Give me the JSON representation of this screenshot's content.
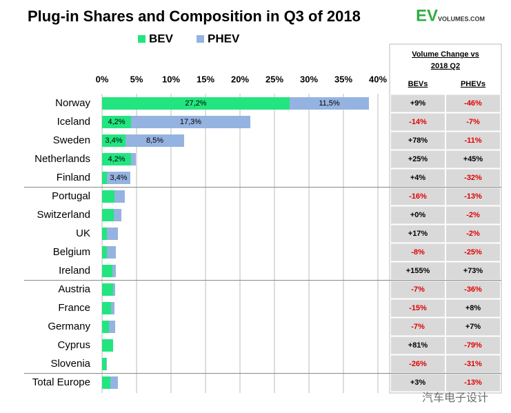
{
  "chart_data": {
    "type": "bar",
    "orientation": "horizontal",
    "stacked": true,
    "title": "Plug-in Shares and Composition in Q3 of 2018",
    "categories": [
      "Norway",
      "Iceland",
      "Sweden",
      "Netherlands",
      "Finland",
      "Portugal",
      "Switzerland",
      "UK",
      "Belgium",
      "Ireland",
      "Austria",
      "France",
      "Germany",
      "Cyprus",
      "Slovenia",
      "Total Europe"
    ],
    "series": [
      {
        "name": "BEV",
        "color": "#22e57f",
        "values": [
          27.2,
          4.2,
          3.4,
          4.2,
          0.7,
          1.8,
          1.7,
          0.7,
          0.7,
          1.5,
          1.6,
          1.3,
          1.0,
          1.6,
          0.6,
          1.2
        ],
        "value_labels": [
          "27,2%",
          "4,2%",
          "3,4%",
          "4,2%",
          null,
          null,
          null,
          null,
          null,
          null,
          null,
          null,
          null,
          null,
          null,
          null
        ]
      },
      {
        "name": "PHEV",
        "color": "#95b3e0",
        "values": [
          11.5,
          17.3,
          8.5,
          0.7,
          3.4,
          1.5,
          1.1,
          1.6,
          1.3,
          0.5,
          0.3,
          0.5,
          0.9,
          0,
          0.1,
          1.1
        ],
        "value_labels": [
          "11,5%",
          "17,3%",
          "8,5%",
          null,
          "3,4%",
          null,
          null,
          null,
          null,
          null,
          null,
          null,
          null,
          null,
          null,
          null
        ]
      }
    ],
    "xlim": [
      0,
      40
    ],
    "xticks": [
      {
        "value": 0,
        "label": "0%"
      },
      {
        "value": 5,
        "label": "5%"
      },
      {
        "value": 10,
        "label": "10%"
      },
      {
        "value": 15,
        "label": "15%"
      },
      {
        "value": 20,
        "label": "20%"
      },
      {
        "value": 25,
        "label": "25%"
      },
      {
        "value": 30,
        "label": "30%"
      },
      {
        "value": 35,
        "label": "35%"
      },
      {
        "value": 40,
        "label": "40%"
      }
    ],
    "grid": true
  },
  "logo": {
    "main": "EV",
    "sub": "VOLUMES.COM"
  },
  "table": {
    "header": [
      "Volume Change vs",
      "2018 Q2"
    ],
    "columns": [
      "BEVs",
      "PHEVs"
    ],
    "rows": [
      [
        "+9%",
        "-46%"
      ],
      [
        "-14%",
        "-7%"
      ],
      [
        "+78%",
        "-11%"
      ],
      [
        "+25%",
        "+45%"
      ],
      [
        "+4%",
        "-32%"
      ],
      [
        "-16%",
        "-13%"
      ],
      [
        "+0%",
        "-2%"
      ],
      [
        "+17%",
        "-2%"
      ],
      [
        "-8%",
        "-25%"
      ],
      [
        "+155%",
        "+73%"
      ],
      [
        "-7%",
        "-36%"
      ],
      [
        "-15%",
        "+8%"
      ],
      [
        "-7%",
        "+7%"
      ],
      [
        "+81%",
        "-79%"
      ],
      [
        "-26%",
        "-31%"
      ],
      [
        "+3%",
        "-13%"
      ]
    ]
  },
  "watermark": "汽车电子设计"
}
